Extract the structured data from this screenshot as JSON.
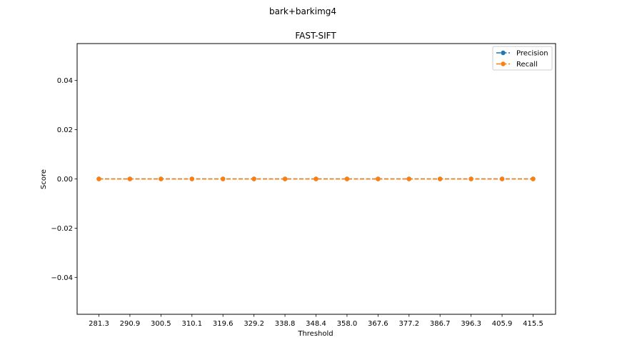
{
  "figure": {
    "suptitle": "bark+barkimg4"
  },
  "chart_data": {
    "type": "line",
    "title": "FAST-SIFT",
    "xlabel": "Threshold",
    "ylabel": "Score",
    "categories": [
      "281.3",
      "290.9",
      "300.5",
      "310.1",
      "319.6",
      "329.2",
      "338.8",
      "348.4",
      "358.0",
      "367.6",
      "377.2",
      "386.7",
      "396.3",
      "405.9",
      "415.5"
    ],
    "ylim": [
      -0.055,
      0.055
    ],
    "yticks": [
      -0.04,
      -0.02,
      0.0,
      0.02,
      0.04
    ],
    "ytick_labels": [
      "−0.04",
      "−0.02",
      "0.00",
      "0.02",
      "0.04"
    ],
    "grid": false,
    "legend_position": "top-right",
    "series": [
      {
        "name": "Precision",
        "color": "#1f77b4",
        "linestyle": "dashed",
        "marker": "circle",
        "values": [
          0,
          0,
          0,
          0,
          0,
          0,
          0,
          0,
          0,
          0,
          0,
          0,
          0,
          0,
          0
        ]
      },
      {
        "name": "Recall",
        "color": "#ff7f0e",
        "linestyle": "dashed",
        "marker": "circle",
        "values": [
          0,
          0,
          0,
          0,
          0,
          0,
          0,
          0,
          0,
          0,
          0,
          0,
          0,
          0,
          0
        ]
      }
    ]
  }
}
